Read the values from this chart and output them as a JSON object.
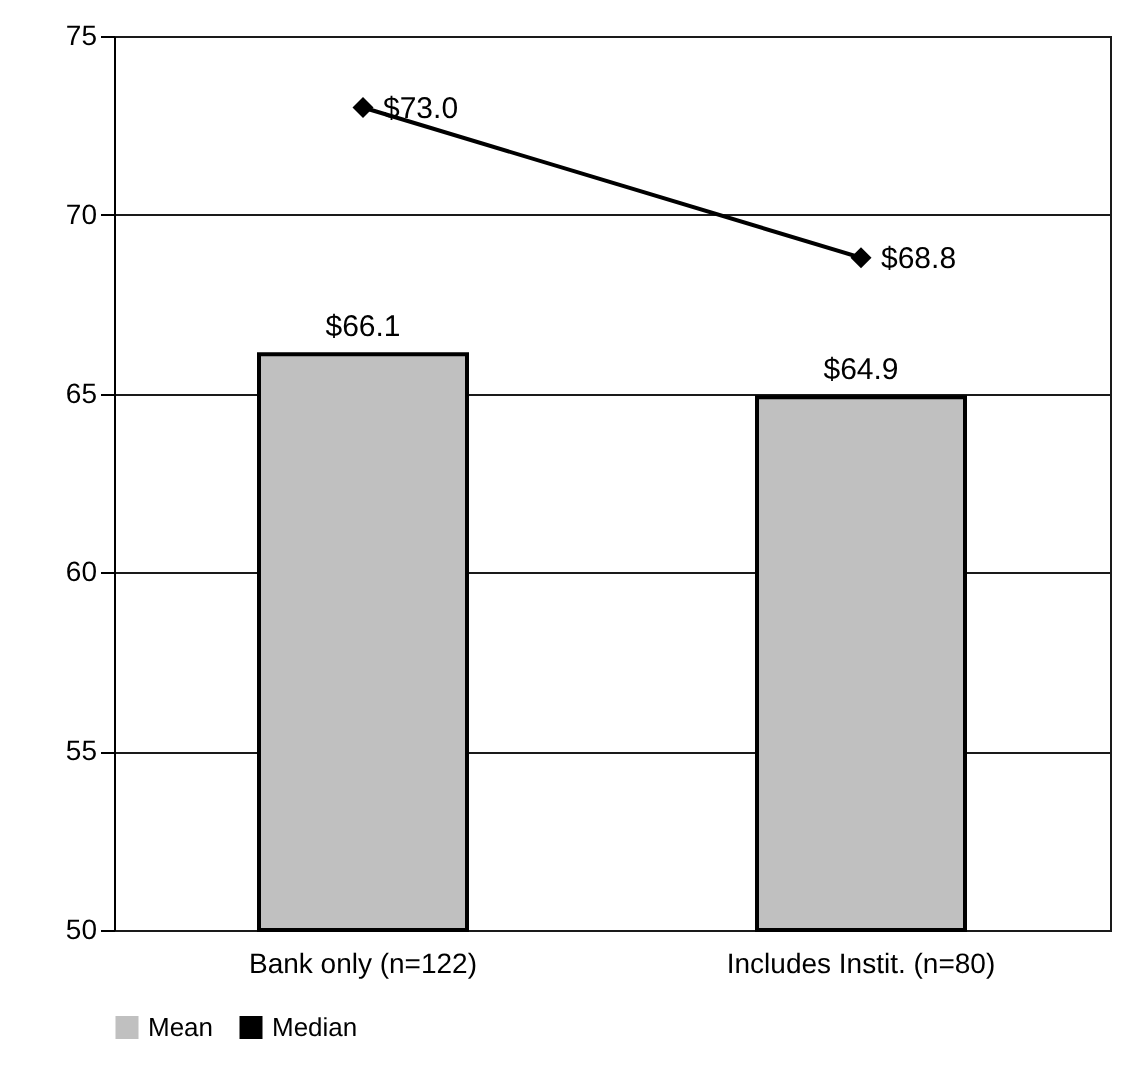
{
  "chart_data": {
    "type": "bar",
    "categories": [
      "Bank only (n=122)",
      "Includes Instit. (n=80)"
    ],
    "series": [
      {
        "name": "Mean",
        "color": "#c0c0c0",
        "values": [
          66.1,
          64.9
        ],
        "value_labels": [
          "$66.1",
          "$64.9"
        ]
      },
      {
        "name": "Median",
        "type": "line",
        "color": "#000000",
        "marker": "diamond",
        "line_style": "solid",
        "values": [
          73.0,
          68.8
        ],
        "value_labels": [
          "$73.0",
          "$68.8"
        ]
      }
    ],
    "ylim": [
      50,
      75
    ],
    "yticks": [
      50,
      55,
      60,
      65,
      70,
      75
    ],
    "grid": "y",
    "legend": "bottom"
  }
}
